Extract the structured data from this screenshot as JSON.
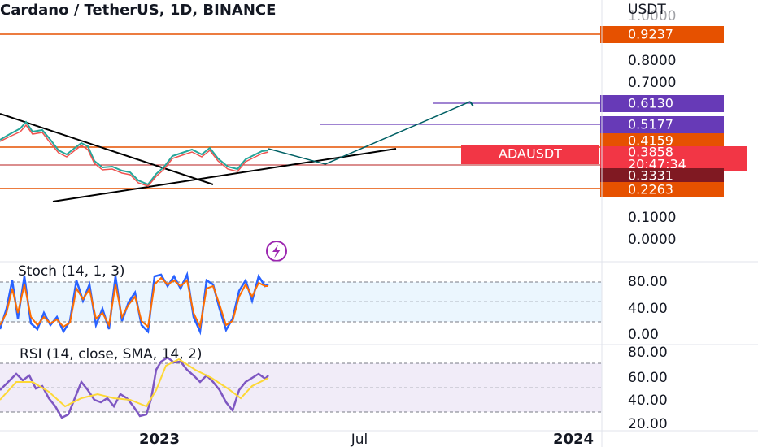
{
  "header": {
    "title": "Cardano / TetherUS, 1D, BINANCE",
    "currency": "USDT"
  },
  "price_axis": {
    "labels": [
      "1.0000",
      "0.8000",
      "0.7000",
      "0.1000",
      "0.0000"
    ]
  },
  "price_tags": [
    "0.9237",
    "0.6130",
    "0.5177",
    "0.4159",
    "0.3331",
    "0.2263"
  ],
  "symbol_tag": {
    "symbol": "ADAUSDT",
    "price": "0.3858",
    "countdown": "20:47:34"
  },
  "stoch": {
    "title": "Stoch (14, 1, 3)",
    "axis": [
      "80.00",
      "40.00",
      "0.00"
    ]
  },
  "rsi": {
    "title": "RSI (14, close, SMA, 14, 2)",
    "axis": [
      "80.00",
      "60.00",
      "40.00",
      "20.00"
    ]
  },
  "time_axis": [
    "2023",
    "Jul",
    "2024"
  ]
}
